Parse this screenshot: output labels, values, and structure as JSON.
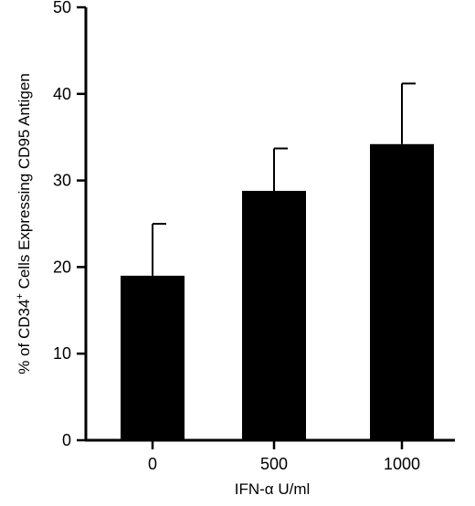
{
  "chart_data": {
    "type": "bar",
    "title": "",
    "xlabel": "IFN-α U/ml",
    "ylabel": "% of CD34+ Cells Expressing CD95 Antigen",
    "ylabel_parts": {
      "before": "% of CD34",
      "sup": "+",
      "after": " Cells Expressing CD95 Antigen"
    },
    "categories": [
      "0",
      "500",
      "1000"
    ],
    "values": [
      19,
      28.8,
      34.2
    ],
    "error_upper": [
      6,
      4.9,
      7
    ],
    "ylim": [
      0,
      50
    ],
    "yticks": [
      0,
      10,
      20,
      30,
      40,
      50
    ],
    "grid": false,
    "bar_color": "#000000"
  }
}
